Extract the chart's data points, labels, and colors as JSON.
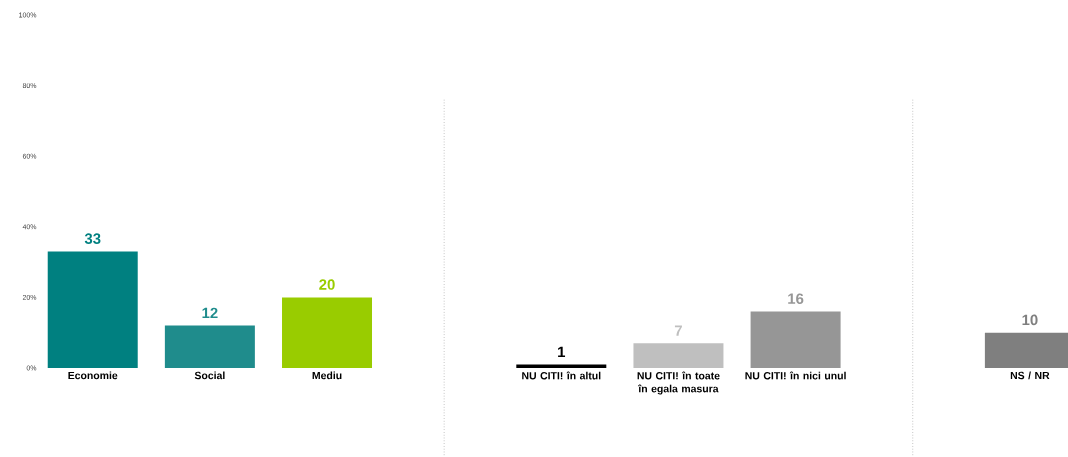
{
  "chart_data": {
    "type": "bar",
    "categories": [
      "Economie",
      "Social",
      "Mediu",
      null,
      "NU CITI! în altul",
      "NU CITI! în toate în egala masura",
      "NU CITI! în nici unul",
      null,
      "NS / NR"
    ],
    "values": [
      33,
      12,
      20,
      null,
      1,
      7,
      16,
      null,
      10
    ],
    "colors": [
      "#008080",
      "#1f8c8c",
      "#99cc00",
      "#ffffff",
      "#000000",
      "#bfbfbf",
      "#969696",
      "#ffffff",
      "#7f7f7f"
    ],
    "ylim": [
      0,
      100
    ],
    "yticks": [
      {
        "value": 0,
        "label": "0%"
      },
      {
        "value": 20,
        "label": "20%"
      },
      {
        "value": 40,
        "label": "40%"
      },
      {
        "value": 60,
        "label": "60%"
      },
      {
        "value": 80,
        "label": "80%"
      },
      {
        "value": 100,
        "label": "100%"
      }
    ],
    "data_labels": true
  }
}
